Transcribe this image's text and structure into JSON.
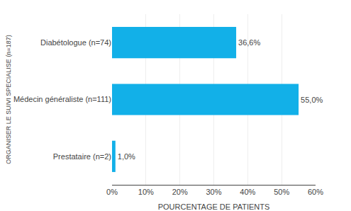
{
  "chart_data": {
    "type": "bar",
    "orientation": "horizontal",
    "categories": [
      "Prestataire (n=2)",
      "Médecin généraliste (n=111)",
      "Diabétologue (n=74)"
    ],
    "values": [
      1.0,
      55.0,
      36.6
    ],
    "value_labels": [
      "1,0%",
      "55,0%",
      "36,6%"
    ],
    "data_labels": true,
    "color": "#12B0E8",
    "xlabel": "POURCENTAGE DE PATIENTS",
    "ylabel": "ORGANISER LE SUIVI SPECIALISE (n=187)",
    "xlim": [
      0,
      60
    ],
    "xticks": [
      {
        "value": 0,
        "label": "0%"
      },
      {
        "value": 10,
        "label": "10%"
      },
      {
        "value": 20,
        "label": "20%"
      },
      {
        "value": 30,
        "label": "30%"
      },
      {
        "value": 40,
        "label": "40%"
      },
      {
        "value": 50,
        "label": "50%"
      },
      {
        "value": 60,
        "label": "60%"
      }
    ],
    "grid": true
  }
}
